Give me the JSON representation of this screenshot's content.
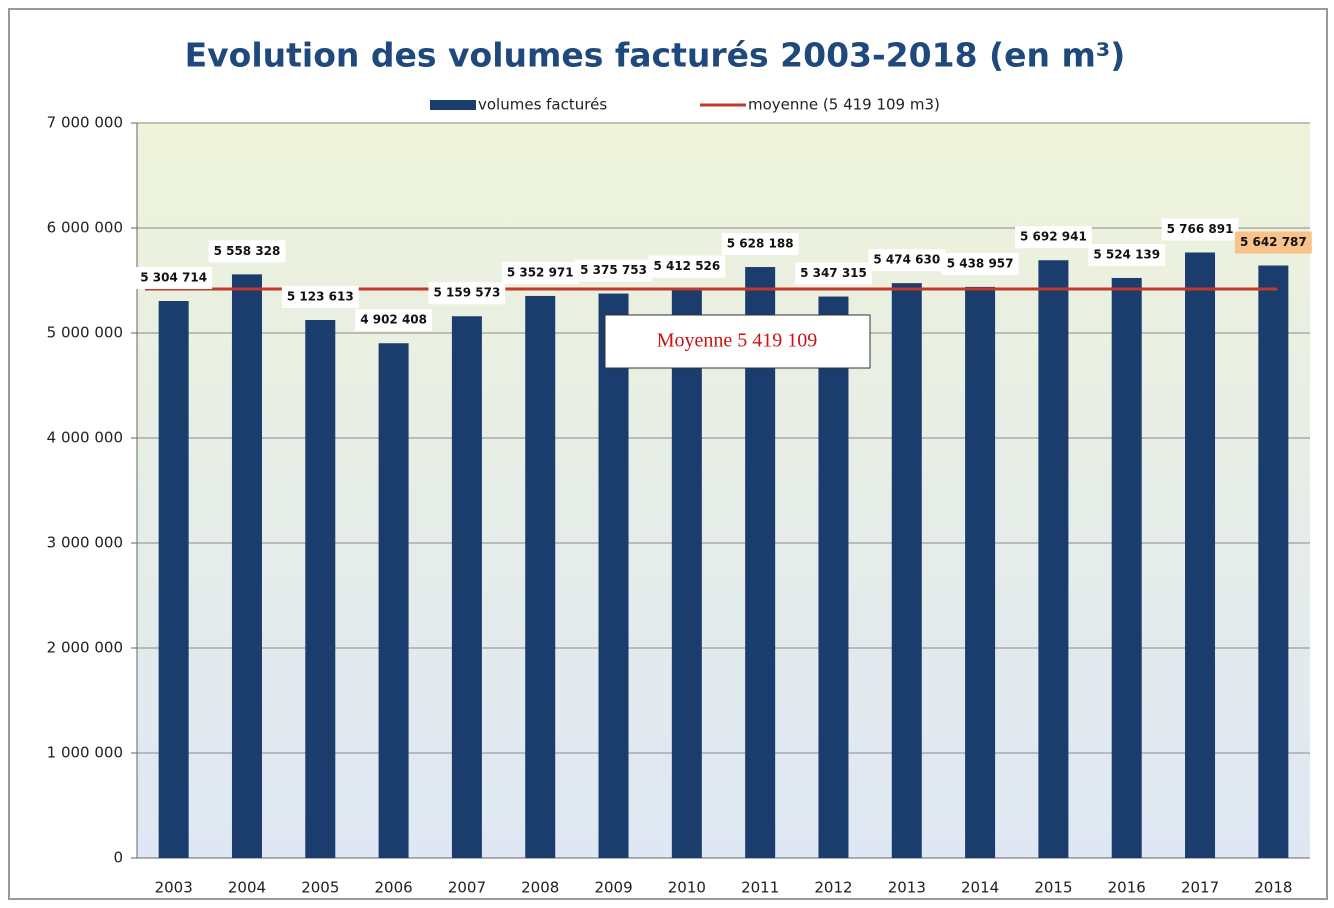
{
  "chart_data": {
    "type": "bar",
    "title": "Evolution des volumes facturés 2003-2018 (en m³)",
    "categories": [
      "2003",
      "2004",
      "2005",
      "2006",
      "2007",
      "2008",
      "2009",
      "2010",
      "2011",
      "2012",
      "2013",
      "2014",
      "2015",
      "2016",
      "2017",
      "2018"
    ],
    "series": [
      {
        "name": "volumes facturés",
        "color": "#1a3d6e",
        "type": "bar",
        "values": [
          5304714,
          5558328,
          5123613,
          4902408,
          5159573,
          5352971,
          5375753,
          5412526,
          5628188,
          5347315,
          5474630,
          5438957,
          5692941,
          5524139,
          5766891,
          5642787
        ],
        "value_labels": [
          "5 304 714",
          "5 558 328",
          "5 123 613",
          "4 902 408",
          "5 159 573",
          "5 352 971",
          "5 375 753",
          "5 412 526",
          "5 628 188",
          "5 347 315",
          "5 474 630",
          "5 438 957",
          "5 692 941",
          "5 524 139",
          "5 766 891",
          "5 642 787"
        ]
      },
      {
        "name": "moyenne (5 419 109 m3)",
        "color": "#c0392b",
        "type": "line",
        "values": [
          5419109,
          5419109,
          5419109,
          5419109,
          5419109,
          5419109,
          5419109,
          5419109,
          5419109,
          5419109,
          5419109,
          5419109,
          5419109,
          5419109,
          5419109,
          5419109
        ]
      }
    ],
    "annotation": "Moyenne 5 419 109",
    "ylim": [
      0,
      7000000
    ],
    "yticks": [
      {
        "value": 0,
        "label": "0"
      },
      {
        "value": 1000000,
        "label": "1 000 000"
      },
      {
        "value": 2000000,
        "label": "2 000 000"
      },
      {
        "value": 3000000,
        "label": "3 000 000"
      },
      {
        "value": 4000000,
        "label": "4 000 000"
      },
      {
        "value": 5000000,
        "label": "5 000 000"
      },
      {
        "value": 6000000,
        "label": "6 000 000"
      },
      {
        "value": 7000000,
        "label": "7 000 000"
      }
    ],
    "grid": true,
    "legend": "top"
  }
}
